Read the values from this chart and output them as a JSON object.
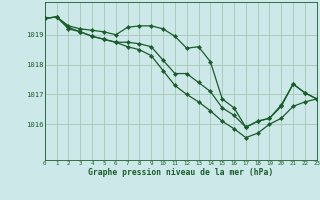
{
  "title": "Graphe pression niveau de la mer (hPa)",
  "bg_color": "#cce8e8",
  "grid_color": "#aaccbb",
  "line_color": "#1a5c2a",
  "marker_color": "#1a5c2a",
  "x": [
    0,
    1,
    2,
    3,
    4,
    5,
    6,
    7,
    8,
    9,
    10,
    11,
    12,
    13,
    14,
    15,
    16,
    17,
    18,
    19,
    20,
    21,
    22,
    23
  ],
  "line1": [
    1019.55,
    1019.6,
    1019.3,
    1019.2,
    1019.15,
    1019.1,
    1019.0,
    1019.25,
    1019.3,
    1019.3,
    1019.2,
    1018.95,
    1018.55,
    1018.6,
    1018.1,
    1016.85,
    1016.55,
    1015.9,
    1016.1,
    1016.2,
    1016.65,
    1017.35,
    1017.05,
    1016.85
  ],
  "line2": [
    1019.55,
    1019.6,
    1019.2,
    1019.1,
    1018.95,
    1018.85,
    1018.75,
    1018.75,
    1018.7,
    1018.6,
    1018.15,
    1017.7,
    1017.7,
    1017.4,
    1017.1,
    1016.55,
    1016.3,
    1015.9,
    1016.1,
    1016.2,
    1016.6,
    1017.35,
    1017.05,
    1016.85
  ],
  "line3": [
    1019.55,
    1019.6,
    1019.25,
    1019.1,
    1018.95,
    1018.85,
    1018.75,
    1018.6,
    1018.5,
    1018.3,
    1017.8,
    1017.3,
    1017.0,
    1016.75,
    1016.45,
    1016.1,
    1015.85,
    1015.55,
    1015.7,
    1016.0,
    1016.2,
    1016.6,
    1016.75,
    1016.85
  ],
  "ylim": [
    1014.8,
    1020.1
  ],
  "yticks": [
    1016,
    1017,
    1018,
    1019
  ],
  "xlim": [
    0,
    23
  ],
  "xticks": [
    0,
    1,
    2,
    3,
    4,
    5,
    6,
    7,
    8,
    9,
    10,
    11,
    12,
    13,
    14,
    15,
    16,
    17,
    18,
    19,
    20,
    21,
    22,
    23
  ]
}
